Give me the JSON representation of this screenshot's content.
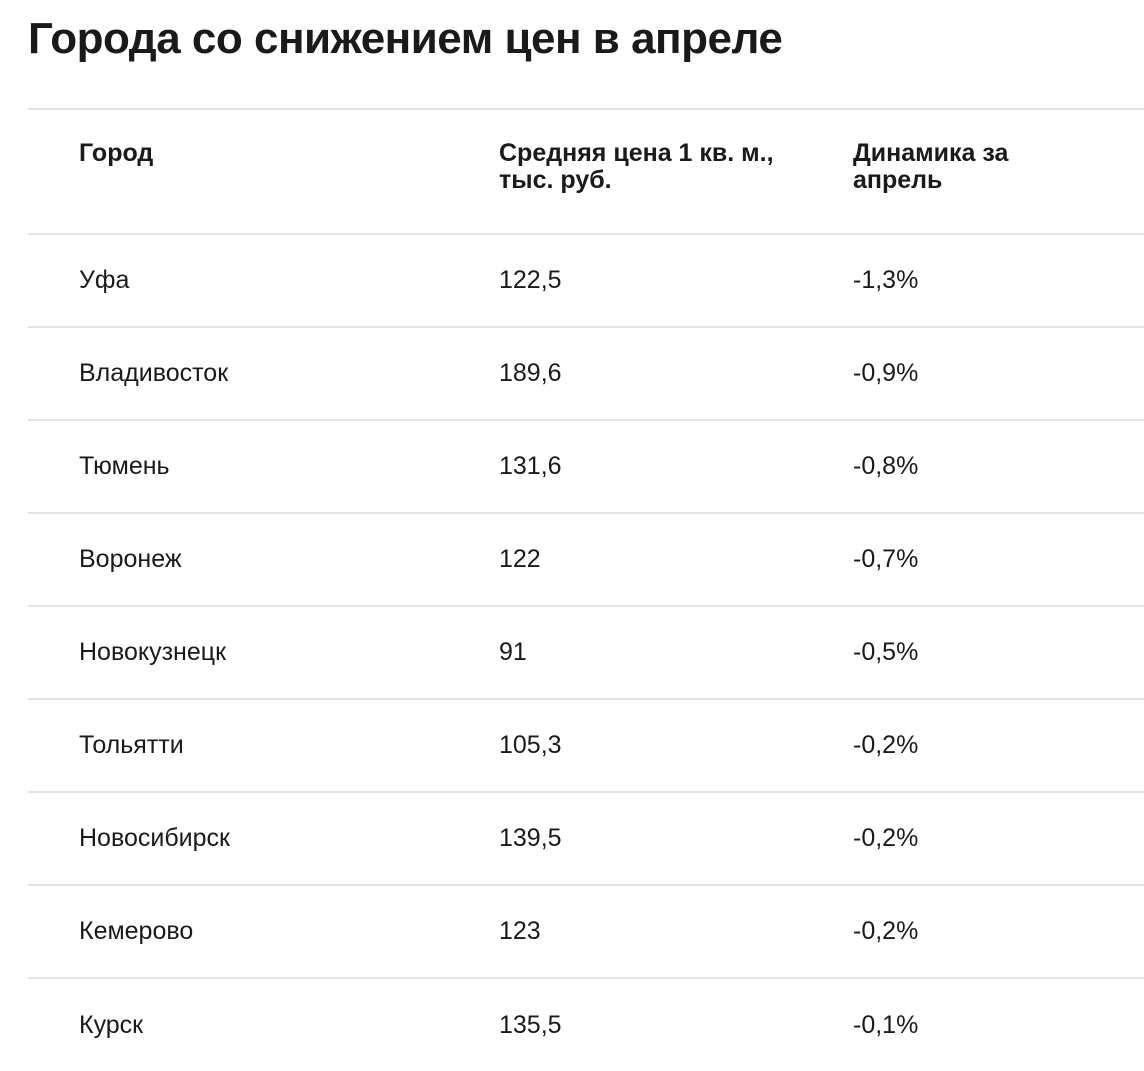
{
  "title": "Города со снижением цен в апреле",
  "chart_data": {
    "type": "table",
    "title": "Города со снижением цен в апреле",
    "columns": [
      "Город",
      "Средняя цена 1 кв. м., тыс. руб.",
      "Динамика за апрель"
    ],
    "rows": [
      [
        "Уфа",
        "122,5",
        "-1,3%"
      ],
      [
        "Владивосток",
        "189,6",
        "-0,9%"
      ],
      [
        "Тюмень",
        "131,6",
        "-0,8%"
      ],
      [
        "Воронеж",
        "122",
        "-0,7%"
      ],
      [
        "Новокузнецк",
        "91",
        "-0,5%"
      ],
      [
        "Тольятти",
        "105,3",
        "-0,2%"
      ],
      [
        "Новосибирск",
        "139,5",
        "-0,2%"
      ],
      [
        "Кемерово",
        "123",
        "-0,2%"
      ],
      [
        "Курск",
        "135,5",
        "-0,1%"
      ]
    ]
  },
  "colors": {
    "text": "#1a1a1a",
    "divider": "#e4e4e4",
    "background": "#ffffff"
  }
}
